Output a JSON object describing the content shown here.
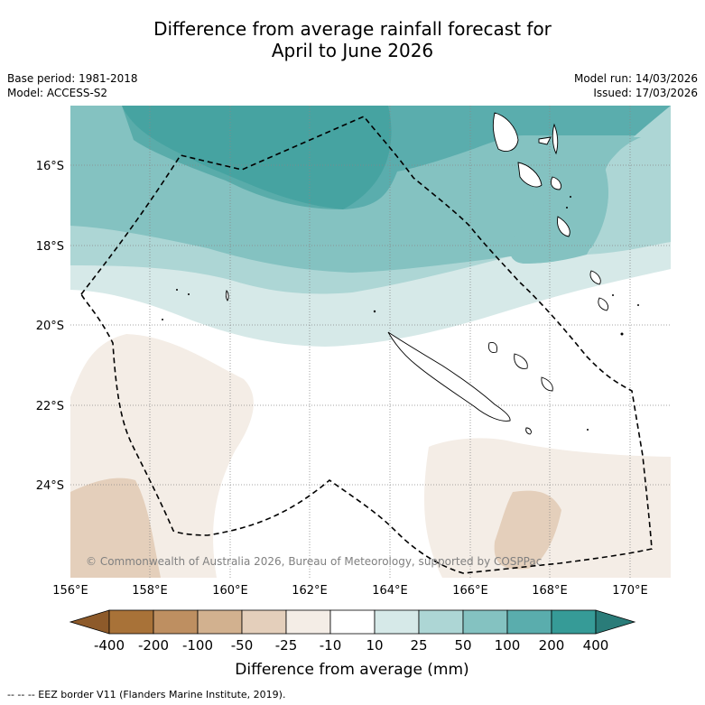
{
  "title": {
    "line1": "Difference from average rainfall forecast for",
    "line2": "April to June 2026"
  },
  "meta": {
    "base_period": "Base period: 1981-2018",
    "model": "Model: ACCESS-S2",
    "model_run": "Model run: 14/03/2026",
    "issued": "Issued: 17/03/2026"
  },
  "axes": {
    "lon_ticks": [
      "156°E",
      "158°E",
      "160°E",
      "162°E",
      "164°E",
      "166°E",
      "168°E",
      "170°E"
    ],
    "lat_ticks": [
      "16°S",
      "18°S",
      "20°S",
      "22°S",
      "24°S"
    ]
  },
  "copyright": "© Commonwealth of Australia 2026, Bureau of Meteorology, supported by COSPPac",
  "colorbar": {
    "ticks": [
      "-400",
      "-200",
      "-100",
      "-50",
      "-25",
      "-10",
      "10",
      "25",
      "50",
      "100",
      "200",
      "400"
    ],
    "label": "Difference from average (mm)",
    "colors": [
      "#a87238",
      "#be8f61",
      "#d2b18f",
      "#e4cfbb",
      "#f4ede6",
      "#ffffff",
      "#d6e9e8",
      "#add6d5",
      "#84c2c1",
      "#5aadad",
      "#369b97"
    ],
    "under_color": "#8d5a2a",
    "over_color": "#2a7c79"
  },
  "legend": {
    "eez": "--  --  -- EEZ border V11 (Flanders Marine Institute, 2019)."
  }
}
